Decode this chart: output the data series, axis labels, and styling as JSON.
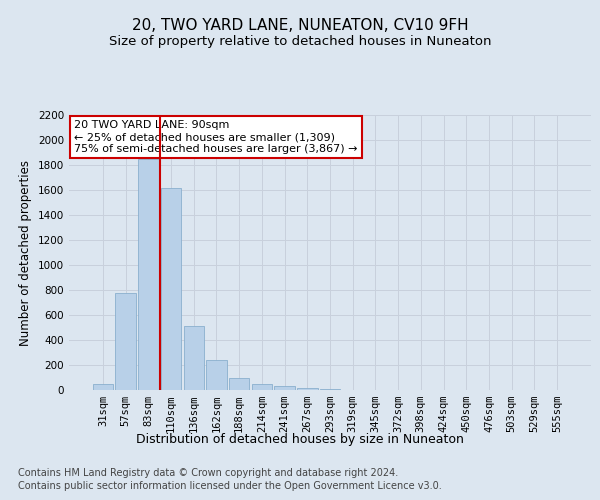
{
  "title": "20, TWO YARD LANE, NUNEATON, CV10 9FH",
  "subtitle": "Size of property relative to detached houses in Nuneaton",
  "xlabel": "Distribution of detached houses by size in Nuneaton",
  "ylabel": "Number of detached properties",
  "footer_line1": "Contains HM Land Registry data © Crown copyright and database right 2024.",
  "footer_line2": "Contains public sector information licensed under the Open Government Licence v3.0.",
  "bar_labels": [
    "31sqm",
    "57sqm",
    "83sqm",
    "110sqm",
    "136sqm",
    "162sqm",
    "188sqm",
    "214sqm",
    "241sqm",
    "267sqm",
    "293sqm",
    "319sqm",
    "345sqm",
    "372sqm",
    "398sqm",
    "424sqm",
    "450sqm",
    "476sqm",
    "503sqm",
    "529sqm",
    "555sqm"
  ],
  "bar_values": [
    50,
    780,
    1850,
    1620,
    510,
    240,
    100,
    50,
    35,
    20,
    5,
    0,
    0,
    0,
    0,
    0,
    0,
    0,
    0,
    0,
    0
  ],
  "bar_color": "#b8d0e8",
  "bar_edge_color": "#8aafce",
  "grid_color": "#c8d0dc",
  "vline_x": 2.5,
  "vline_color": "#cc0000",
  "annotation_box_text": "20 TWO YARD LANE: 90sqm\n← 25% of detached houses are smaller (1,309)\n75% of semi-detached houses are larger (3,867) →",
  "ylim": [
    0,
    2200
  ],
  "yticks": [
    0,
    200,
    400,
    600,
    800,
    1000,
    1200,
    1400,
    1600,
    1800,
    2000,
    2200
  ],
  "background_color": "#dce6f0",
  "plot_background_color": "#dce6f0",
  "title_fontsize": 11,
  "subtitle_fontsize": 9.5,
  "tick_fontsize": 7.5,
  "ylabel_fontsize": 8.5,
  "xlabel_fontsize": 9,
  "footer_fontsize": 7,
  "annotation_fontsize": 8
}
